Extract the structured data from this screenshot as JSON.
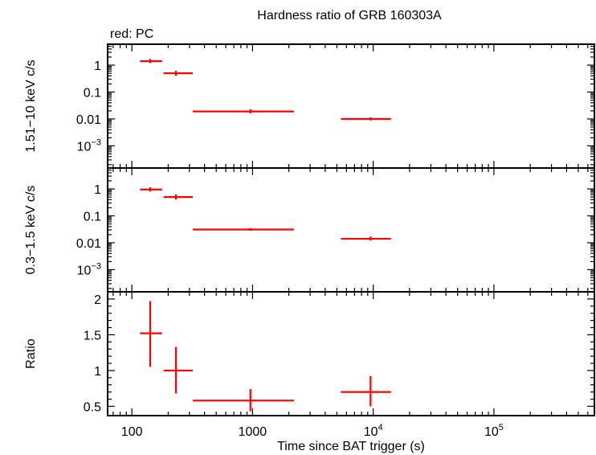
{
  "title": "Hardness ratio of GRB 160303A",
  "subtitle": "red: PC",
  "colors": {
    "data": "#ff0000",
    "axis": "#000000"
  },
  "chart_data": [
    {
      "type": "scatter",
      "panel": "hard",
      "ylabel": "1.51−10 keV c/s",
      "yscale": "log",
      "ylim": [
        0.00015,
        6
      ],
      "yticks": [
        {
          "value": 1,
          "label": "1"
        },
        {
          "value": 0.1,
          "label": "0.1"
        },
        {
          "value": 0.01,
          "label": "0.01"
        },
        {
          "value": 0.001,
          "label": "10",
          "sup": "−3"
        }
      ],
      "points": [
        {
          "x": 142,
          "xlo": 117,
          "xhi": 178,
          "y": 1.4,
          "ylo": 1.2,
          "yhi": 1.7
        },
        {
          "x": 232,
          "xlo": 183,
          "xhi": 320,
          "y": 0.5,
          "ylo": 0.4,
          "yhi": 0.62
        },
        {
          "x": 960,
          "xlo": 320,
          "xhi": 2200,
          "y": 0.019,
          "ylo": 0.016,
          "yhi": 0.023
        },
        {
          "x": 9500,
          "xlo": 5400,
          "xhi": 14000,
          "y": 0.01,
          "ylo": 0.0088,
          "yhi": 0.0115
        }
      ]
    },
    {
      "type": "scatter",
      "panel": "soft",
      "ylabel": "0.3−1.5 keV c/s",
      "yscale": "log",
      "ylim": [
        0.00015,
        6
      ],
      "yticks": [
        {
          "value": 1,
          "label": "1"
        },
        {
          "value": 0.1,
          "label": "0.1"
        },
        {
          "value": 0.01,
          "label": "0.01"
        },
        {
          "value": 0.001,
          "label": "10",
          "sup": "−3"
        }
      ],
      "points": [
        {
          "x": 142,
          "xlo": 117,
          "xhi": 178,
          "y": 0.95,
          "ylo": 0.8,
          "yhi": 1.15
        },
        {
          "x": 232,
          "xlo": 183,
          "xhi": 320,
          "y": 0.5,
          "ylo": 0.4,
          "yhi": 0.62
        },
        {
          "x": 960,
          "xlo": 320,
          "xhi": 2200,
          "y": 0.031,
          "ylo": 0.028,
          "yhi": 0.035
        },
        {
          "x": 9500,
          "xlo": 5400,
          "xhi": 14000,
          "y": 0.014,
          "ylo": 0.012,
          "yhi": 0.017
        }
      ]
    },
    {
      "type": "scatter",
      "panel": "ratio",
      "ylabel": "Ratio",
      "yscale": "linear",
      "ylim": [
        0.37,
        2.1
      ],
      "yticks": [
        {
          "value": 2,
          "label": "2"
        },
        {
          "value": 1.5,
          "label": "1.5"
        },
        {
          "value": 1,
          "label": "1"
        },
        {
          "value": 0.5,
          "label": "0.5"
        }
      ],
      "points": [
        {
          "x": 142,
          "xlo": 117,
          "xhi": 178,
          "y": 1.52,
          "ylo": 1.05,
          "yhi": 1.97
        },
        {
          "x": 232,
          "xlo": 183,
          "xhi": 320,
          "y": 1.0,
          "ylo": 0.68,
          "yhi": 1.33
        },
        {
          "x": 960,
          "xlo": 320,
          "xhi": 2200,
          "y": 0.58,
          "ylo": 0.43,
          "yhi": 0.74
        },
        {
          "x": 9500,
          "xlo": 5400,
          "xhi": 14000,
          "y": 0.7,
          "ylo": 0.5,
          "yhi": 0.92
        }
      ]
    }
  ],
  "xaxis": {
    "label": "Time since BAT trigger (s)",
    "scale": "log",
    "xlim": [
      63,
      680000
    ],
    "ticks": [
      {
        "value": 100,
        "label": "100"
      },
      {
        "value": 1000,
        "label": "1000"
      },
      {
        "value": 10000,
        "label": "10",
        "sup": "4"
      },
      {
        "value": 100000,
        "label": "10",
        "sup": "5"
      }
    ]
  }
}
